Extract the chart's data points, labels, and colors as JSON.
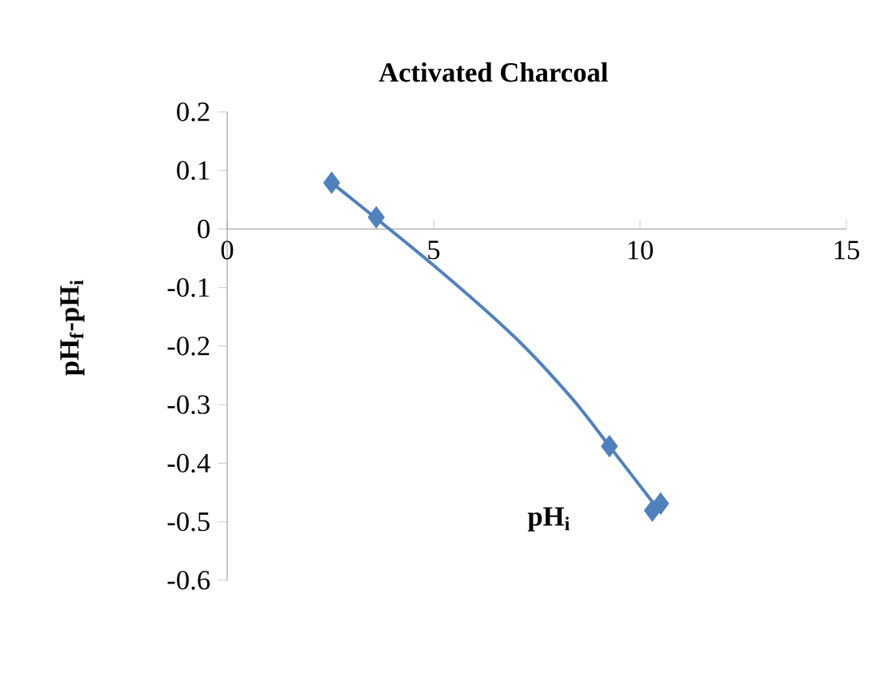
{
  "chart_data": {
    "type": "scatter",
    "title": "Activated Charcoal",
    "xlabel": "pH$_{i}$",
    "ylabel": "pH$_{f}$-pH$_{i}$",
    "xlim": [
      0,
      15
    ],
    "ylim": [
      -0.6,
      0.2
    ],
    "xticks": [
      0,
      5,
      10,
      15
    ],
    "yticks": [
      -0.6,
      -0.5,
      -0.4,
      -0.3,
      -0.2,
      -0.1,
      0,
      0.1,
      0.2
    ],
    "grid": false,
    "marker": "diamond",
    "series": [
      {
        "color": "#4f81bd",
        "x": [
          2.53,
          3.61,
          9.26,
          10.3,
          10.5
        ],
        "values": [
          0.079,
          0.02,
          -0.371,
          -0.481,
          -0.469
        ]
      },
      {
        "type": "line",
        "color": "#4f81bd",
        "marker": "none",
        "x": [
          2.53,
          5,
          6.97,
          8.36,
          9.26,
          10.4
        ],
        "values": [
          0.079,
          -0.062,
          -0.185,
          -0.29,
          -0.371,
          -0.475
        ]
      }
    ]
  }
}
